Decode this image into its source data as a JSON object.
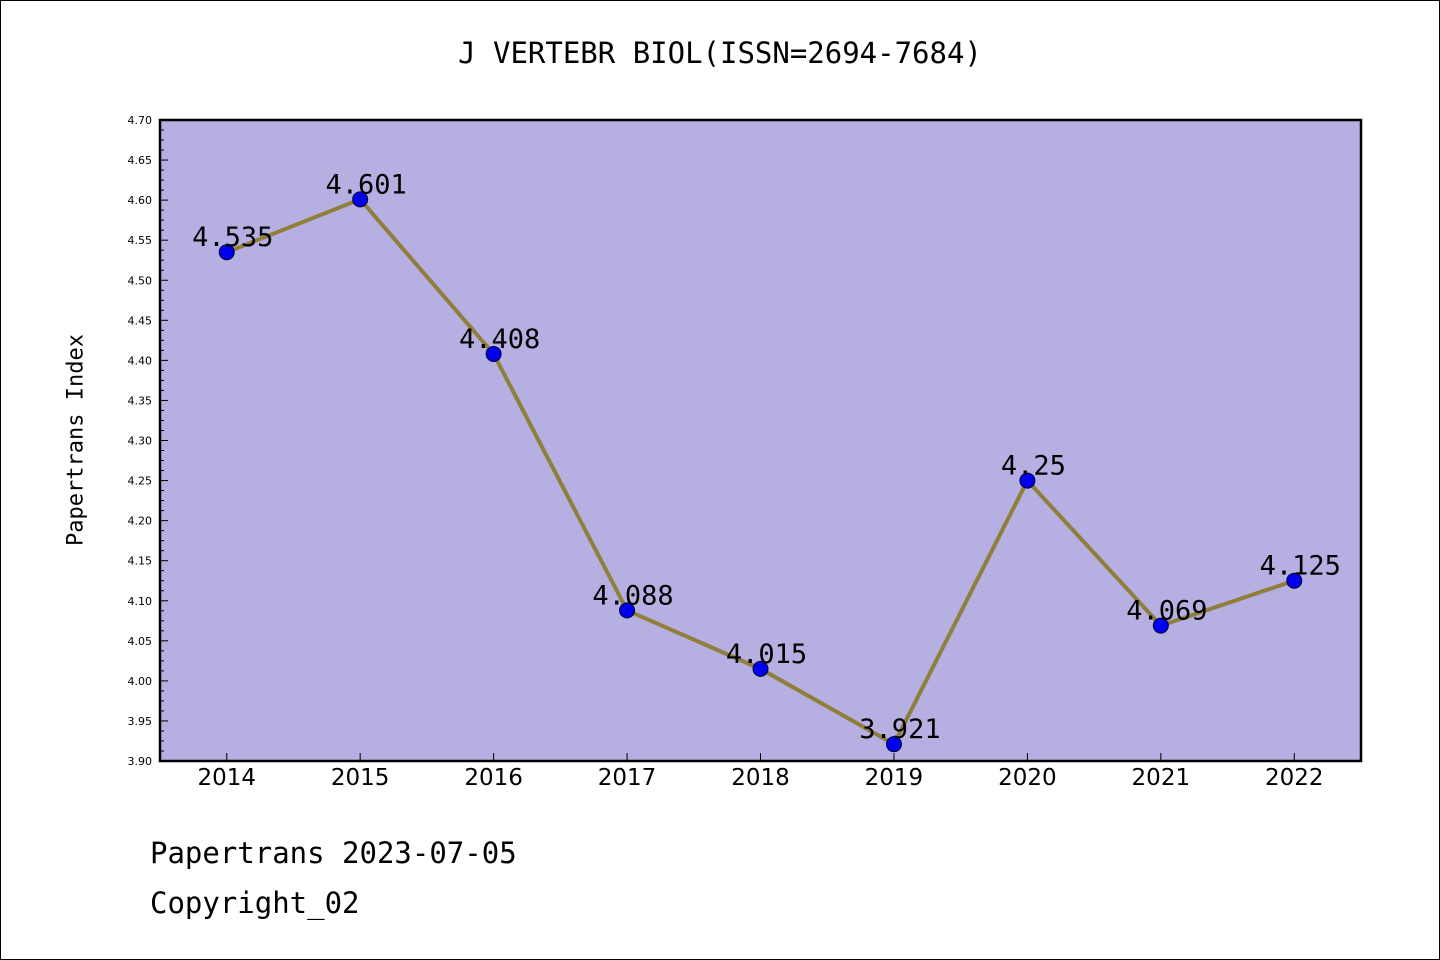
{
  "colors": {
    "plot_background": "#b5afe2",
    "line": "#8f7f3a",
    "marker": "#0000ee"
  },
  "footer": {
    "date_text": "Papertrans 2023-07-05",
    "copyright_text": "Copyright_02"
  },
  "chart_data": {
    "type": "line",
    "title": "J VERTEBR BIOL(ISSN=2694-7684)",
    "xlabel": "",
    "ylabel": "Papertrans Index",
    "categories": [
      "2014",
      "2015",
      "2016",
      "2017",
      "2018",
      "2019",
      "2020",
      "2021",
      "2022"
    ],
    "series": [
      {
        "values": [
          4.535,
          4.601,
          4.408,
          4.088,
          4.015,
          3.921,
          4.25,
          4.069,
          4.125
        ]
      }
    ],
    "data_labels": [
      "4.535",
      "4.601",
      "4.408",
      "4.088",
      "4.015",
      "3.921",
      "4.25",
      "4.069",
      "4.125"
    ],
    "ylim": [
      3.9,
      4.7
    ],
    "y_ticks": [
      "3.90",
      "3.95",
      "4.00",
      "4.05",
      "4.10",
      "4.15",
      "4.20",
      "4.25",
      "4.30",
      "4.35",
      "4.40",
      "4.45",
      "4.50",
      "4.55",
      "4.60",
      "4.65",
      "4.70"
    ],
    "y_minor_per_major": 4,
    "grid": false,
    "legend": "none"
  }
}
